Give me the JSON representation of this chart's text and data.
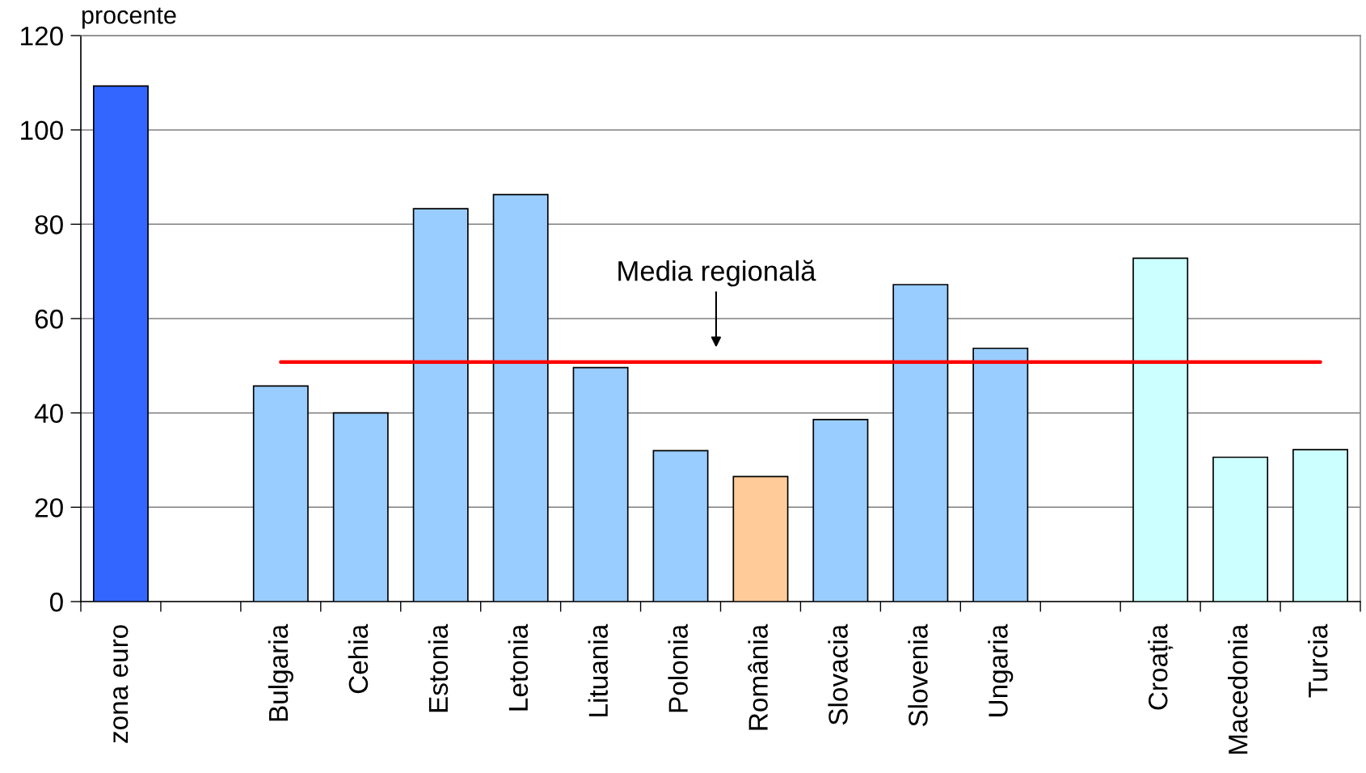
{
  "chart_data": {
    "type": "bar",
    "ylabel": "procente",
    "categories": [
      "zona euro",
      null,
      "Bulgaria",
      "Cehia",
      "Estonia",
      "Letonia",
      "Lituania",
      "Polonia",
      "România",
      "Slovacia",
      "Slovenia",
      "Ungaria",
      null,
      "Croația",
      "Macedonia",
      "Turcia"
    ],
    "series": [
      {
        "values": [
          109.3,
          null,
          45.7,
          40.0,
          83.3,
          86.3,
          49.6,
          32.0,
          26.5,
          38.6,
          67.2,
          53.7,
          null,
          72.8,
          30.6,
          32.2
        ],
        "colors": [
          "#3366ff",
          null,
          "#99ccff",
          "#99ccff",
          "#99ccff",
          "#99ccff",
          "#99ccff",
          "#99ccff",
          "#ffcc99",
          "#99ccff",
          "#99ccff",
          "#99ccff",
          null,
          "#ccffff",
          "#ccffff",
          "#ccffff"
        ]
      },
      {
        "type": "line",
        "color": "#ff0000",
        "values": [
          null,
          null,
          50.8,
          50.8,
          50.8,
          50.8,
          50.8,
          50.8,
          50.8,
          50.8,
          50.8,
          50.8,
          50.8,
          50.8,
          50.8,
          50.8
        ]
      }
    ],
    "annotations": [
      {
        "text": "Media regională",
        "y": 50.8
      }
    ],
    "ylim": [
      0,
      120
    ],
    "yticks": [
      0,
      20,
      40,
      60,
      80,
      100,
      120
    ],
    "grid": "y"
  }
}
